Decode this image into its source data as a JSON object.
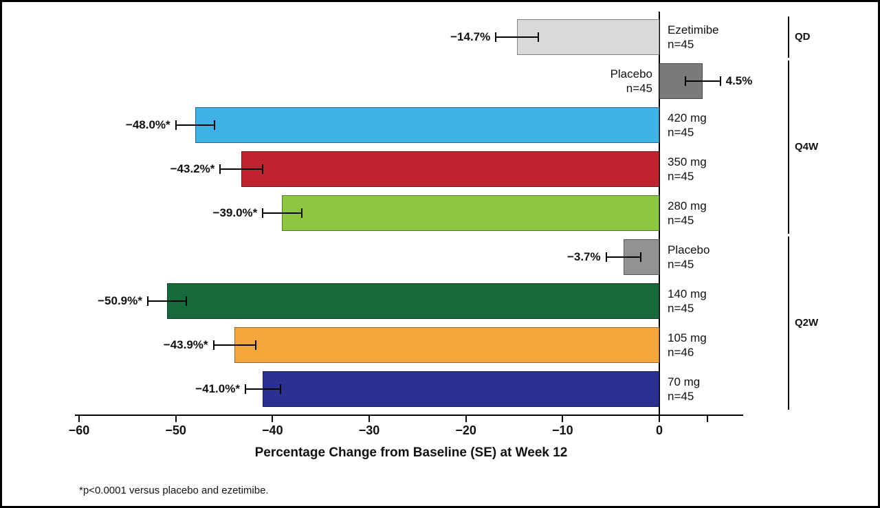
{
  "chart_data": {
    "type": "bar",
    "orientation": "horizontal",
    "title": "",
    "xlabel": "Percentage Change from Baseline (SE) at Week 12",
    "ylabel": "",
    "footnote": "*p<0.0001 versus placebo and ezetimibe.",
    "xlim": [
      -60,
      8
    ],
    "grid": false,
    "legend": "none",
    "x_ticks": [
      {
        "value": -60,
        "label": "−60"
      },
      {
        "value": -50,
        "label": "−50"
      },
      {
        "value": -40,
        "label": "−40"
      },
      {
        "value": -30,
        "label": "−30"
      },
      {
        "value": -20,
        "label": "−20"
      },
      {
        "value": -10,
        "label": "−10"
      },
      {
        "value": 0,
        "label": "0"
      },
      {
        "value": 5,
        "label": ""
      }
    ],
    "bars": [
      {
        "label": "Ezetimibe",
        "n": "n=45",
        "value": -14.7,
        "se": 2.2,
        "value_label": "−14.7%",
        "color": "#d9d9d9",
        "group": "QD"
      },
      {
        "label": "Placebo",
        "n": "n=45",
        "value": 4.5,
        "se": 1.8,
        "value_label": "4.5%",
        "color": "#7a7a7a",
        "group": "Q4W"
      },
      {
        "label": "420 mg",
        "n": "n=45",
        "value": -48.0,
        "se": 2.0,
        "value_label": "−48.0%*",
        "color": "#3fb3e5",
        "group": "Q4W"
      },
      {
        "label": "350 mg",
        "n": "n=45",
        "value": -43.2,
        "se": 2.2,
        "value_label": "−43.2%*",
        "color": "#bf2330",
        "group": "Q4W"
      },
      {
        "label": "280 mg",
        "n": "n=45",
        "value": -39.0,
        "se": 2.0,
        "value_label": "−39.0%*",
        "color": "#8dc63f",
        "group": "Q4W"
      },
      {
        "label": "Placebo",
        "n": "n=45",
        "value": -3.7,
        "se": 1.8,
        "value_label": "−3.7%",
        "color": "#929292",
        "group": "Q2W"
      },
      {
        "label": "140 mg",
        "n": "n=45",
        "value": -50.9,
        "se": 2.0,
        "value_label": "−50.9%*",
        "color": "#15693b",
        "group": "Q2W"
      },
      {
        "label": "105 mg",
        "n": "n=46",
        "value": -43.9,
        "se": 2.2,
        "value_label": "−43.9%*",
        "color": "#f6a73b",
        "group": "Q2W"
      },
      {
        "label": "70 mg",
        "n": "n=45",
        "value": -41.0,
        "se": 1.8,
        "value_label": "−41.0%*",
        "color": "#2a3190",
        "group": "Q2W"
      }
    ],
    "groups": [
      {
        "label": "QD",
        "rows": [
          0,
          0
        ]
      },
      {
        "label": "Q4W",
        "rows": [
          1,
          4
        ]
      },
      {
        "label": "Q2W",
        "rows": [
          5,
          8
        ]
      }
    ]
  }
}
